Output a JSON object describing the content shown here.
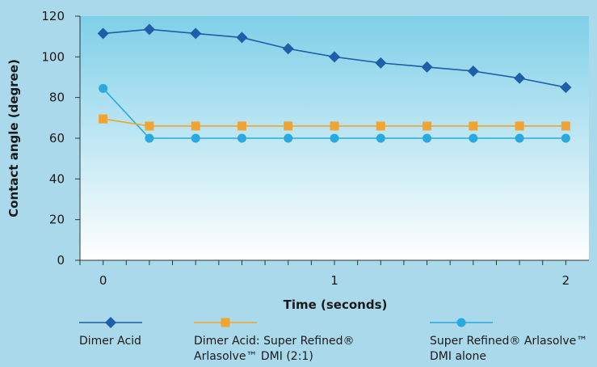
{
  "chart_data": {
    "type": "line",
    "xlabel": "Time (seconds)",
    "ylabel": "Contact angle (degree)",
    "xlim": [
      -0.1,
      2.1
    ],
    "ylim": [
      0,
      120
    ],
    "x_ticks": [
      "0",
      "1",
      "2"
    ],
    "y_ticks": [
      "0",
      "20",
      "40",
      "60",
      "80",
      "100",
      "120"
    ],
    "x": [
      0,
      0.2,
      0.4,
      0.6,
      0.8,
      1.0,
      1.2,
      1.4,
      1.6,
      1.8,
      2.0
    ],
    "series": [
      {
        "name": "Dimer Acid",
        "marker": "diamond",
        "color": "#1f5ea8",
        "values": [
          111.5,
          113.5,
          111.5,
          109.5,
          104,
          100,
          97,
          95,
          93,
          89.5,
          85
        ]
      },
      {
        "name": "Dimer Acid: Super Refined® Arlasolve™ DMI (2:1)",
        "marker": "square",
        "color": "#f0a431",
        "values": [
          69.5,
          66,
          66,
          66,
          66,
          66,
          66,
          66,
          66,
          66,
          66
        ]
      },
      {
        "name": "Super Refined® Arlasolve™ DMI alone",
        "marker": "circle",
        "color": "#2aa9e0",
        "values": [
          84.5,
          60,
          60,
          60,
          60,
          60,
          60,
          60,
          60,
          60,
          60
        ]
      }
    ],
    "grid": false,
    "legend_position": "bottom"
  },
  "legend": {
    "item1": {
      "line1": "Dimer Acid",
      "line2": ""
    },
    "item2": {
      "line1": "Dimer Acid: Super Refined® ",
      "line2": "Arlasolve™ DMI (2:1)"
    },
    "item3": {
      "line1": "Super Refined® Arlasolve™",
      "line2": "DMI alone"
    }
  }
}
